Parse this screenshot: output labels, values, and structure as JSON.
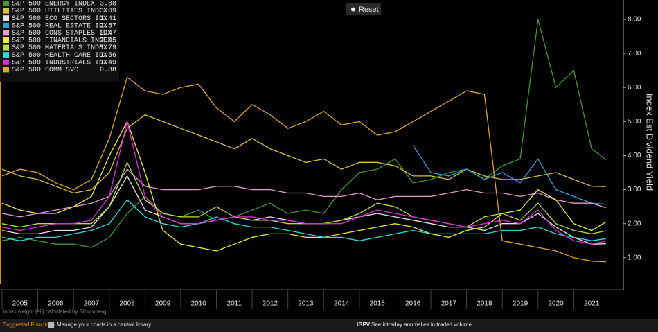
{
  "chart_data": {
    "type": "line",
    "y_axis_label": "Index Est Dividend Yield",
    "footnote": "Index weight (%) calculated by Bloomberg",
    "reset_button": "Reset",
    "x": [
      2005.0,
      2005.5,
      2006.0,
      2006.5,
      2007.0,
      2007.5,
      2008.0,
      2008.5,
      2009.0,
      2009.5,
      2010.0,
      2010.5,
      2011.0,
      2011.5,
      2012.0,
      2012.5,
      2013.0,
      2013.5,
      2014.0,
      2014.5,
      2015.0,
      2015.5,
      2016.0,
      2016.5,
      2017.0,
      2017.5,
      2018.0,
      2018.5,
      2019.0,
      2019.5,
      2020.0,
      2020.5,
      2021.0,
      2021.5,
      2021.9
    ],
    "xlim": [
      2005,
      2022
    ],
    "xticks": [
      2005,
      2006,
      2007,
      2008,
      2009,
      2010,
      2011,
      2012,
      2013,
      2014,
      2015,
      2016,
      2017,
      2018,
      2019,
      2020,
      2021
    ],
    "ylim": [
      0.06,
      8.57
    ],
    "yticks": [
      {
        "value": 1,
        "label": "1.00"
      },
      {
        "value": 2,
        "label": "2.00"
      },
      {
        "value": 3,
        "label": "3.00"
      },
      {
        "value": 4,
        "label": "4.00"
      },
      {
        "value": 5,
        "label": "5.00"
      },
      {
        "value": 6,
        "label": "6.00"
      },
      {
        "value": 7,
        "label": "7.00"
      },
      {
        "value": 8,
        "label": "8.00"
      }
    ],
    "grid": false,
    "legend": "top-left",
    "series": [
      {
        "name": "S&P 500 ENERGY INDEX",
        "last_value": 3.88,
        "color": "#3f9a2e",
        "values": [
          1.5,
          1.6,
          1.5,
          1.4,
          1.4,
          1.3,
          1.6,
          2.3,
          2.8,
          2.3,
          2.2,
          2.4,
          2.1,
          2.2,
          2.4,
          2.6,
          2.3,
          2.4,
          2.3,
          3.0,
          3.5,
          3.6,
          3.9,
          3.2,
          3.3,
          3.5,
          3.6,
          3.3,
          3.7,
          3.9,
          8.0,
          6.0,
          6.5,
          4.2,
          3.88
        ]
      },
      {
        "name": "S&P 500 UTILITIES INDEX",
        "last_value": 3.09,
        "color": "#d9c23a",
        "values": [
          3.6,
          3.4,
          3.3,
          3.1,
          2.9,
          3.0,
          3.5,
          4.8,
          5.2,
          5.0,
          4.8,
          4.6,
          4.4,
          4.2,
          4.5,
          4.2,
          4.0,
          3.8,
          3.9,
          3.6,
          3.8,
          3.8,
          3.7,
          3.4,
          3.4,
          3.3,
          3.6,
          3.4,
          3.3,
          3.3,
          3.4,
          3.5,
          3.3,
          3.1,
          3.09
        ]
      },
      {
        "name": "S&P 500 ECO SECTORS IDX",
        "last_value": 1.41,
        "color": "#e6e6e6",
        "values": [
          1.8,
          1.7,
          1.7,
          1.8,
          1.8,
          1.9,
          2.5,
          3.4,
          2.4,
          2.2,
          2.0,
          2.0,
          2.1,
          2.2,
          2.1,
          2.2,
          2.1,
          2.0,
          2.0,
          2.1,
          2.2,
          2.3,
          2.2,
          2.1,
          2.0,
          1.9,
          1.9,
          1.8,
          2.0,
          2.0,
          2.3,
          1.9,
          1.6,
          1.4,
          1.41
        ]
      },
      {
        "name": "S&P 500 REAL ESTATE IDX",
        "last_value": 2.57,
        "color": "#2f9fe0",
        "values": [
          null,
          null,
          null,
          null,
          null,
          null,
          null,
          null,
          null,
          null,
          null,
          null,
          null,
          null,
          null,
          null,
          null,
          null,
          null,
          null,
          null,
          null,
          null,
          4.3,
          3.5,
          3.4,
          3.6,
          3.3,
          3.5,
          3.2,
          3.9,
          3.0,
          2.8,
          2.6,
          2.57
        ]
      },
      {
        "name": "S&P 500 CONS STAPLES IDX",
        "last_value": 2.47,
        "color": "#e89bd2",
        "values": [
          2.3,
          2.2,
          2.3,
          2.4,
          2.5,
          2.6,
          2.8,
          3.6,
          3.1,
          3.0,
          3.0,
          3.0,
          3.1,
          3.1,
          3.0,
          3.0,
          2.9,
          2.9,
          2.8,
          2.8,
          2.9,
          2.7,
          2.8,
          2.8,
          2.8,
          2.9,
          3.0,
          2.9,
          2.9,
          2.8,
          2.9,
          2.7,
          2.6,
          2.6,
          2.47
        ]
      },
      {
        "name": "S&P 500 FINANCIALS INDEX",
        "last_value": 2.05,
        "color": "#ecec3a",
        "values": [
          2.6,
          2.4,
          2.3,
          2.3,
          2.5,
          2.8,
          4.0,
          5.0,
          3.5,
          1.8,
          1.4,
          1.3,
          1.2,
          1.4,
          1.6,
          1.7,
          1.7,
          1.6,
          1.6,
          1.7,
          1.8,
          1.9,
          2.0,
          1.9,
          1.7,
          1.6,
          1.8,
          1.9,
          2.3,
          2.4,
          3.0,
          2.7,
          2.0,
          1.8,
          2.05
        ]
      },
      {
        "name": "S&P 500 MATERIALS INDEX",
        "last_value": 1.79,
        "color": "#b6e03a",
        "values": [
          2.0,
          1.9,
          2.0,
          2.0,
          2.0,
          2.0,
          2.5,
          3.8,
          2.7,
          2.3,
          2.2,
          2.2,
          2.5,
          2.2,
          2.1,
          2.1,
          2.0,
          2.0,
          2.0,
          2.1,
          2.3,
          2.6,
          2.5,
          2.2,
          2.1,
          2.0,
          1.9,
          2.2,
          2.3,
          2.1,
          2.6,
          2.0,
          1.8,
          1.7,
          1.79
        ]
      },
      {
        "name": "S&P 500 HEALTH CARE IDX",
        "last_value": 1.56,
        "color": "#22dede",
        "values": [
          1.6,
          1.5,
          1.6,
          1.6,
          1.7,
          1.8,
          2.0,
          2.7,
          2.2,
          2.0,
          1.9,
          2.0,
          2.2,
          2.0,
          1.9,
          1.9,
          1.8,
          1.7,
          1.6,
          1.6,
          1.5,
          1.6,
          1.7,
          1.8,
          1.7,
          1.7,
          1.7,
          1.7,
          1.8,
          1.8,
          1.9,
          1.7,
          1.6,
          1.5,
          1.56
        ]
      },
      {
        "name": "S&P 500 INDUSTRIALS IDX",
        "last_value": 1.49,
        "color": "#e02ae0",
        "values": [
          1.9,
          1.8,
          1.9,
          2.0,
          2.0,
          2.1,
          2.8,
          5.0,
          2.8,
          2.2,
          2.0,
          2.0,
          2.1,
          2.2,
          2.2,
          2.1,
          2.1,
          2.0,
          2.0,
          2.0,
          2.2,
          2.4,
          2.3,
          2.2,
          2.1,
          2.0,
          1.9,
          2.0,
          2.1,
          2.0,
          2.4,
          1.8,
          1.5,
          1.4,
          1.49
        ]
      },
      {
        "name": "S&P 500 COMM SVC",
        "last_value": 0.88,
        "color": "#e0a52a",
        "values": [
          3.4,
          3.6,
          3.5,
          3.2,
          3.0,
          3.3,
          4.5,
          6.3,
          5.9,
          5.8,
          6.0,
          6.1,
          5.4,
          5.0,
          5.5,
          5.2,
          4.8,
          5.0,
          5.3,
          4.9,
          5.0,
          4.6,
          4.7,
          5.0,
          5.3,
          5.6,
          5.9,
          5.8,
          1.5,
          1.4,
          1.3,
          1.2,
          1.0,
          0.9,
          0.88
        ]
      }
    ]
  },
  "footer": {
    "label": "Suggested Functions",
    "tip1": "Manage your charts in a central library",
    "code": "IGPV",
    "tip2": "See intraday anomalies in traded volume"
  }
}
